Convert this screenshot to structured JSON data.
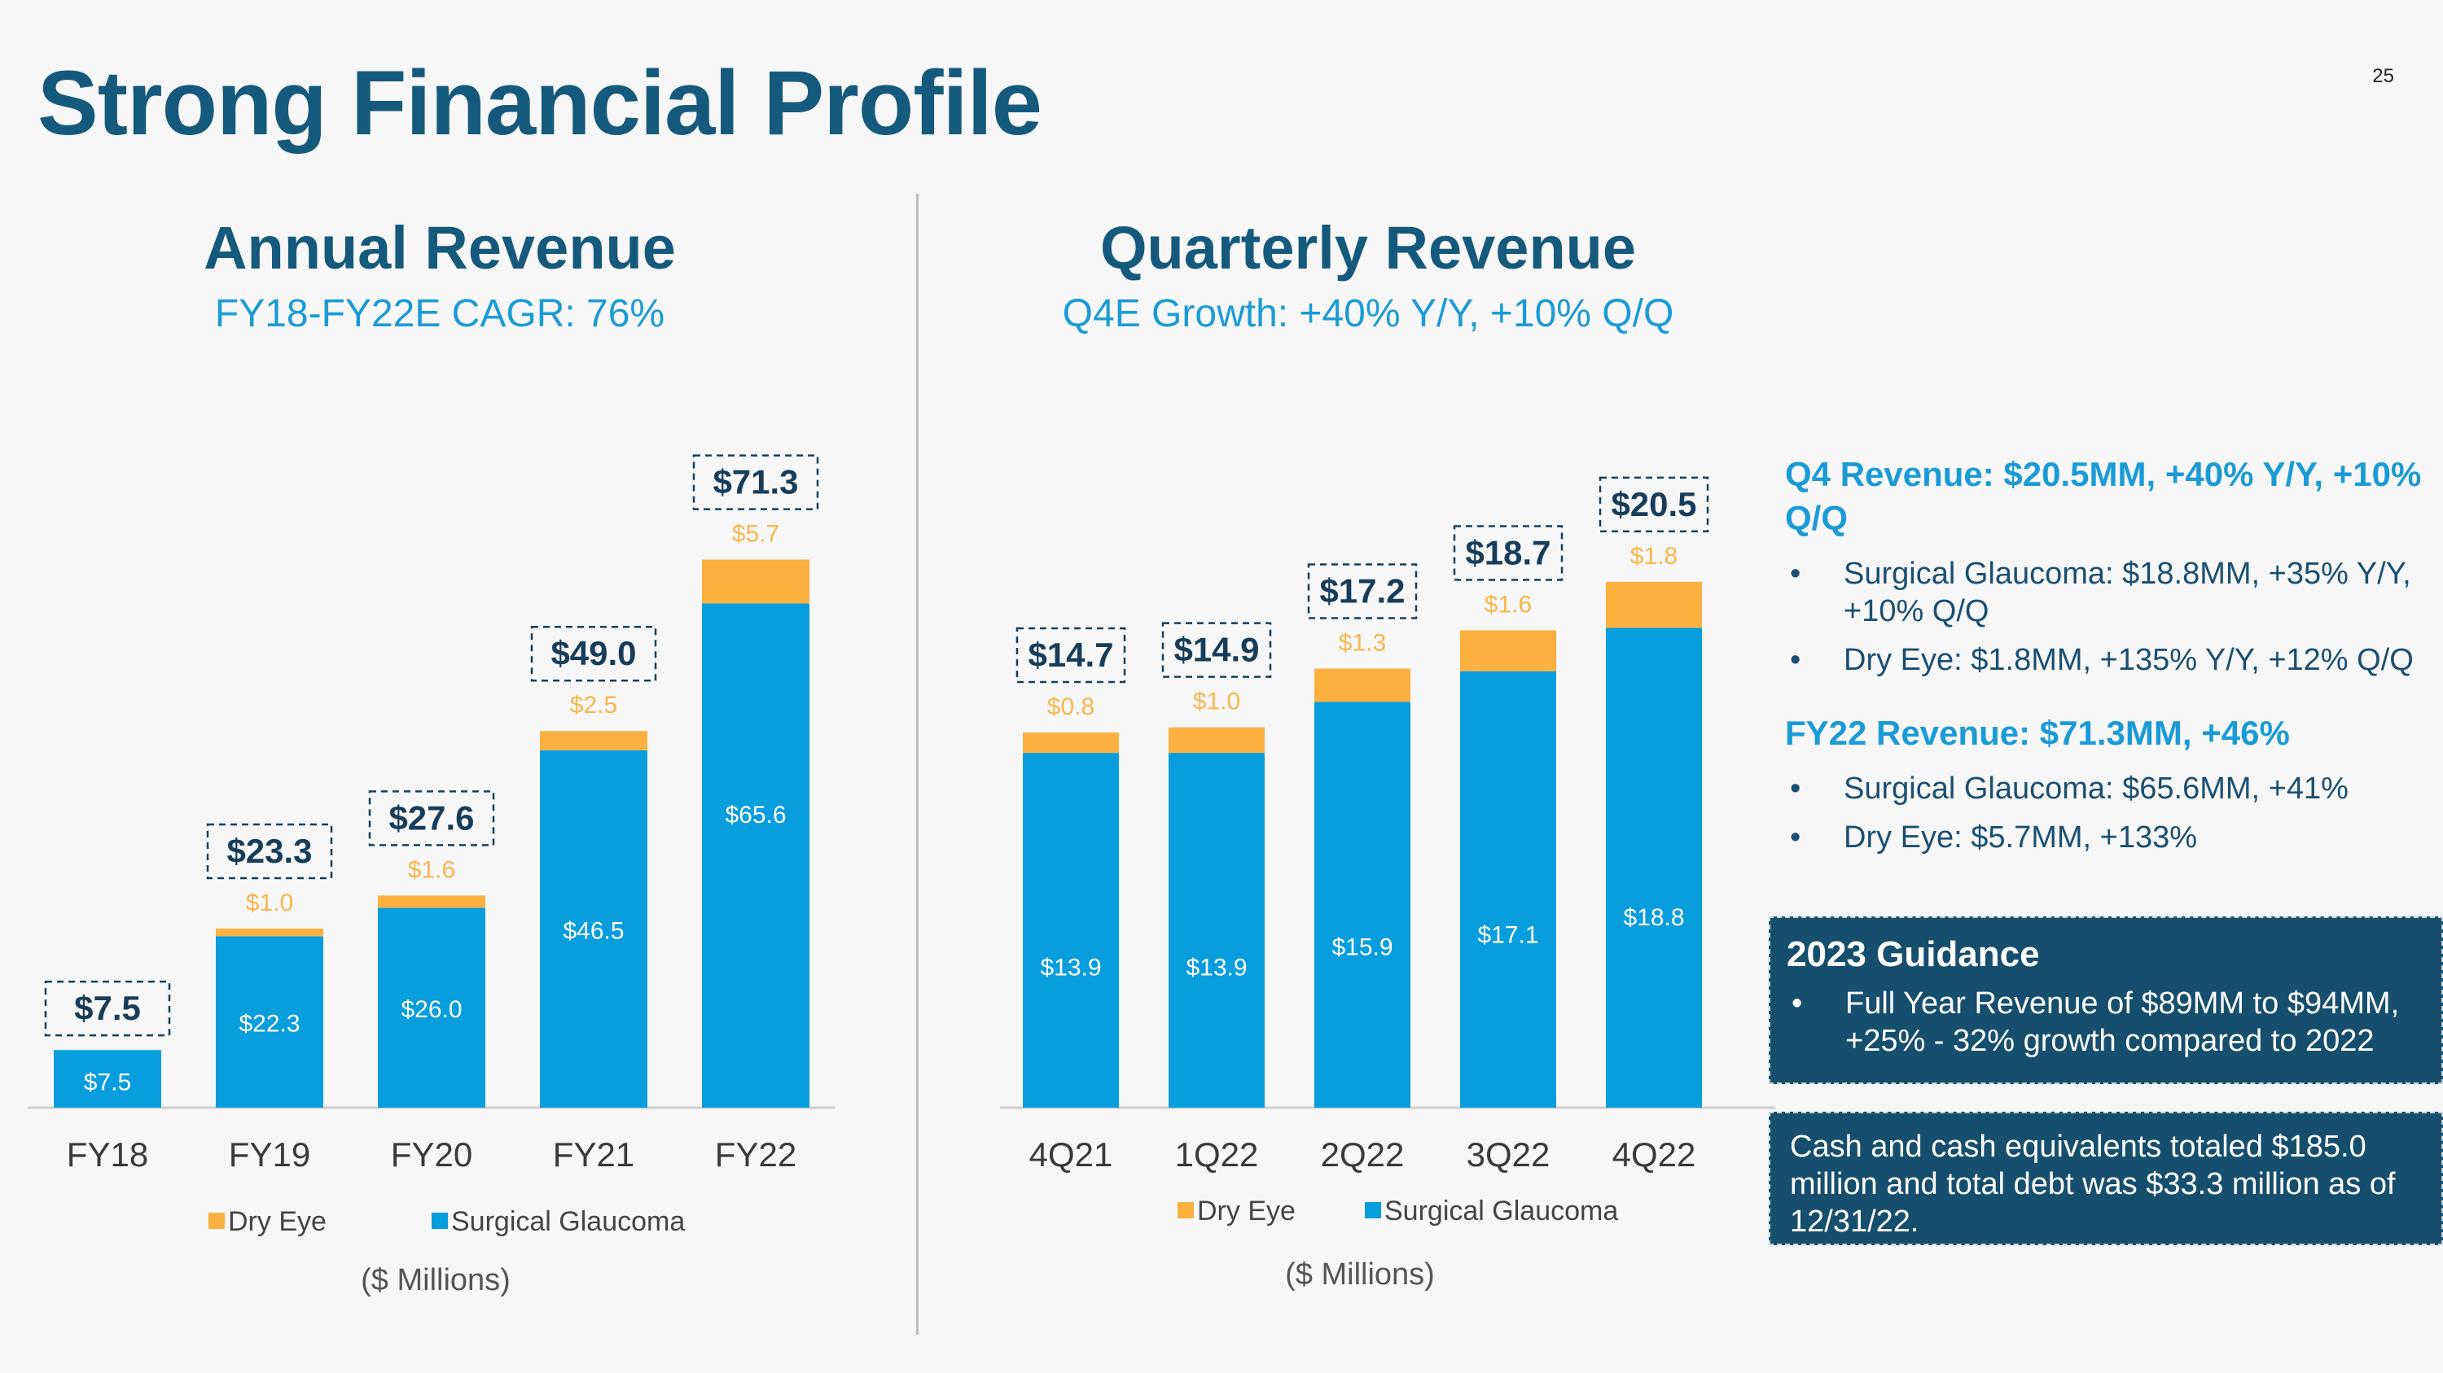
{
  "page": {
    "title": "Strong Financial Profile",
    "page_number": "25"
  },
  "colors": {
    "title": "#155a7c",
    "accent": "#1b9bd6",
    "dry_eye": "#fbb040",
    "surgical_glaucoma": "#089ddd",
    "box": "#164f6e"
  },
  "annual": {
    "title": "Annual Revenue",
    "subtitle": "FY18-FY22E CAGR: 76%",
    "units": "($ Millions)"
  },
  "quarterly": {
    "title": "Quarterly Revenue",
    "subtitle": "Q4E Growth: +40% Y/Y, +10% Q/Q",
    "units": "($ Millions)"
  },
  "chart_data": [
    {
      "type": "bar",
      "stacked": true,
      "categories": [
        "FY18",
        "FY19",
        "FY20",
        "FY21",
        "FY22"
      ],
      "series": [
        {
          "name": "Surgical Glaucoma",
          "values": [
            7.5,
            22.3,
            26.0,
            46.5,
            65.6
          ],
          "labels": [
            "$7.5",
            "$22.3",
            "$26.0",
            "$46.5",
            "$65.6"
          ],
          "color": "#089ddd"
        },
        {
          "name": "Dry Eye",
          "values": [
            0,
            1.0,
            1.6,
            2.5,
            5.7
          ],
          "labels": [
            "",
            "$1.0",
            "$1.6",
            "$2.5",
            "$5.7"
          ],
          "color": "#fbb040"
        }
      ],
      "totals": [
        7.5,
        23.3,
        27.6,
        49.0,
        71.3
      ],
      "total_labels": [
        "$7.5",
        "$23.3",
        "$27.6",
        "$49.0",
        "$71.3"
      ],
      "legend": [
        "Dry Eye",
        "Surgical Glaucoma"
      ],
      "legend_position": "bottom",
      "ylim": [
        0,
        72
      ],
      "grid": false
    },
    {
      "type": "bar",
      "stacked": true,
      "categories": [
        "4Q21",
        "1Q22",
        "2Q22",
        "3Q22",
        "4Q22"
      ],
      "series": [
        {
          "name": "Surgical Glaucoma",
          "values": [
            13.9,
            13.9,
            15.9,
            17.1,
            18.8
          ],
          "labels": [
            "$13.9",
            "$13.9",
            "$15.9",
            "$17.1",
            "$18.8"
          ],
          "color": "#089ddd"
        },
        {
          "name": "Dry Eye",
          "values": [
            0.8,
            1.0,
            1.3,
            1.6,
            1.8
          ],
          "labels": [
            "$0.8",
            "$1.0",
            "$1.3",
            "$1.6",
            "$1.8"
          ],
          "color": "#fbb040"
        }
      ],
      "totals": [
        14.7,
        14.9,
        17.2,
        18.7,
        20.5
      ],
      "total_labels": [
        "$14.7",
        "$14.9",
        "$17.2",
        "$18.7",
        "$20.5"
      ],
      "legend": [
        "Dry Eye",
        "Surgical Glaucoma"
      ],
      "legend_position": "bottom",
      "ylim": [
        0,
        22
      ],
      "grid": false
    }
  ],
  "side": {
    "q4_heading": "Q4 Revenue: $20.5MM, +40% Y/Y, +10% Q/Q",
    "q4_bullets": [
      "Surgical Glaucoma: $18.8MM, +35% Y/Y, +10% Q/Q",
      "Dry Eye: $1.8MM, +135% Y/Y, +12% Q/Q"
    ],
    "fy22_heading": "FY22 Revenue: $71.3MM, +46%",
    "fy22_bullets": [
      "Surgical Glaucoma: $65.6MM, +41%",
      "Dry Eye: $5.7MM, +133%"
    ],
    "guidance_title": "2023 Guidance",
    "guidance_bullets": [
      "Full Year Revenue of $89MM to $94MM, +25% - 32% growth compared to 2022"
    ],
    "cash_text": "Cash and cash equivalents totaled $185.0 million and total debt was $33.3 million as of 12/31/22."
  }
}
